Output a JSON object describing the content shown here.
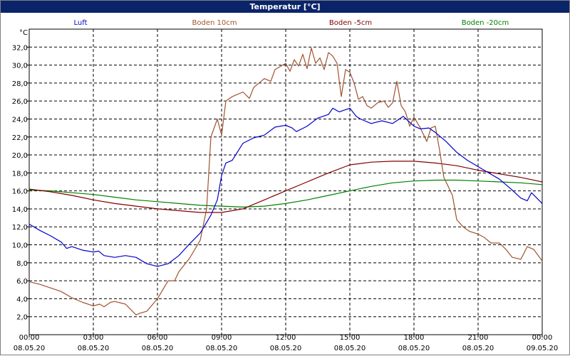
{
  "window": {
    "title": "Temperatur [°C]"
  },
  "chart_data": {
    "type": "line",
    "title": "Temperatur [°C]",
    "ylabel": "°C",
    "xlabel": "",
    "ylim": [
      0,
      34
    ],
    "xlim": [
      0,
      24
    ],
    "grid": true,
    "legend_position": "top",
    "y_ticks": [
      "2,0",
      "4,0",
      "6,0",
      "8,0",
      "10,0",
      "12,0",
      "14,0",
      "16,0",
      "18,0",
      "20,0",
      "22,0",
      "24,0",
      "26,0",
      "28,0",
      "30,0",
      "32,0"
    ],
    "y_tick_values": [
      2,
      4,
      6,
      8,
      10,
      12,
      14,
      16,
      18,
      20,
      22,
      24,
      26,
      28,
      30,
      32
    ],
    "x_ticks": [
      {
        "time": "00:00",
        "date": "08.05.20",
        "h": 0
      },
      {
        "time": "03:00",
        "date": "08.05.20",
        "h": 3
      },
      {
        "time": "06:00",
        "date": "08.05.20",
        "h": 6
      },
      {
        "time": "09:00",
        "date": "08.05.20",
        "h": 9
      },
      {
        "time": "12:00",
        "date": "08.05.20",
        "h": 12
      },
      {
        "time": "15:00",
        "date": "08.05.20",
        "h": 15
      },
      {
        "time": "18:00",
        "date": "08.05.20",
        "h": 18
      },
      {
        "time": "21:00",
        "date": "08.05.20",
        "h": 21
      },
      {
        "time": "00:00",
        "date": "09.05.20",
        "h": 24
      }
    ],
    "series": [
      {
        "name": "Luft",
        "color": "#0000cc",
        "x": [
          0,
          0.5,
          1,
          1.5,
          1.75,
          2,
          2.5,
          3,
          3.25,
          3.5,
          4,
          4.5,
          5,
          5.5,
          6,
          6.5,
          7,
          7.5,
          8,
          8.5,
          8.8,
          9,
          9.2,
          9.5,
          10,
          10.5,
          11,
          11.5,
          12,
          12.3,
          12.5,
          13,
          13.5,
          14,
          14.2,
          14.5,
          15,
          15.3,
          15.5,
          16,
          16.5,
          17,
          17.5,
          18,
          18.3,
          18.7,
          19,
          19.5,
          20,
          20.5,
          21,
          21.5,
          22,
          22.5,
          23,
          23.3,
          23.5,
          24
        ],
        "values": [
          12.3,
          11.6,
          11.0,
          10.3,
          9.6,
          9.8,
          9.4,
          9.2,
          9.3,
          8.8,
          8.6,
          8.8,
          8.6,
          7.9,
          7.6,
          7.9,
          8.8,
          10.1,
          11.3,
          13.3,
          15.0,
          17.7,
          19.1,
          19.4,
          21.3,
          21.9,
          22.2,
          23.1,
          23.3,
          23.0,
          22.6,
          23.2,
          24.1,
          24.5,
          25.2,
          24.8,
          25.2,
          24.3,
          24.0,
          23.5,
          23.8,
          23.5,
          24.3,
          23.2,
          22.9,
          23.0,
          22.5,
          21.5,
          20.3,
          19.4,
          18.7,
          18.0,
          17.3,
          16.3,
          15.2,
          14.9,
          15.8,
          14.6
        ]
      },
      {
        "name": "Boden 10cm",
        "color": "#a0522d",
        "x": [
          0,
          0.5,
          1,
          1.5,
          2,
          2.5,
          3,
          3.3,
          3.5,
          3.8,
          4,
          4.5,
          5,
          5.2,
          5.5,
          6,
          6.5,
          6.8,
          7,
          7.5,
          8,
          8.3,
          8.5,
          8.8,
          9,
          9.2,
          9.5,
          10,
          10.3,
          10.5,
          11,
          11.3,
          11.5,
          12,
          12.2,
          12.4,
          12.6,
          12.8,
          13,
          13.2,
          13.4,
          13.6,
          13.8,
          14,
          14.2,
          14.4,
          14.6,
          14.8,
          15,
          15.2,
          15.4,
          15.6,
          15.8,
          16,
          16.3,
          16.6,
          16.8,
          17,
          17.2,
          17.4,
          17.6,
          17.8,
          18,
          18.3,
          18.6,
          18.8,
          19,
          19.2,
          19.4,
          19.6,
          19.8,
          20,
          20.3,
          20.6,
          21,
          21.3,
          21.6,
          22,
          22.3,
          22.6,
          23,
          23.3,
          23.6,
          24
        ],
        "values": [
          5.9,
          5.6,
          5.2,
          4.8,
          4.1,
          3.6,
          3.2,
          3.4,
          3.1,
          3.6,
          3.7,
          3.4,
          2.2,
          2.4,
          2.6,
          4.0,
          6.0,
          6.0,
          7.0,
          8.5,
          10.5,
          14.0,
          22.0,
          24.0,
          22.2,
          26.0,
          26.5,
          27.0,
          26.3,
          27.5,
          28.5,
          28.2,
          29.5,
          30.2,
          29.3,
          30.6,
          29.9,
          31.2,
          29.6,
          31.9,
          30.2,
          30.8,
          29.5,
          31.4,
          31.0,
          30.2,
          26.5,
          29.5,
          29.2,
          28.0,
          26.2,
          26.5,
          25.5,
          25.2,
          25.8,
          26.0,
          25.3,
          25.8,
          28.2,
          25.5,
          24.8,
          23.2,
          24.2,
          23.0,
          21.5,
          23.0,
          23.2,
          20.5,
          17.5,
          16.5,
          15.5,
          12.8,
          12.0,
          11.5,
          11.2,
          10.8,
          10.2,
          10.2,
          9.5,
          8.6,
          8.4,
          9.8,
          9.5,
          8.2
        ]
      },
      {
        "name": "Boden -5cm",
        "color": "#800000",
        "x": [
          0,
          1,
          2,
          3,
          4,
          5,
          6,
          7,
          8,
          9,
          10,
          11,
          12,
          13,
          14,
          15,
          16,
          17,
          18,
          19,
          20,
          21,
          22,
          23,
          24
        ],
        "values": [
          16.2,
          15.9,
          15.5,
          15.0,
          14.6,
          14.3,
          14.0,
          13.8,
          13.6,
          13.6,
          14.0,
          15.0,
          16.0,
          17.0,
          18.0,
          18.9,
          19.2,
          19.3,
          19.3,
          19.1,
          18.8,
          18.3,
          17.9,
          17.5,
          17.0
        ]
      },
      {
        "name": "Boden -20cm",
        "color": "#008000",
        "x": [
          0,
          1,
          2,
          3,
          4,
          5,
          6,
          7,
          8,
          9,
          10,
          11,
          12,
          13,
          14,
          15,
          16,
          17,
          18,
          19,
          20,
          21,
          22,
          23,
          24
        ],
        "values": [
          16.1,
          16.0,
          15.8,
          15.6,
          15.3,
          15.0,
          14.8,
          14.6,
          14.4,
          14.3,
          14.2,
          14.3,
          14.6,
          15.0,
          15.5,
          16.0,
          16.5,
          16.9,
          17.1,
          17.2,
          17.2,
          17.1,
          17.0,
          16.9,
          16.7
        ]
      }
    ]
  }
}
